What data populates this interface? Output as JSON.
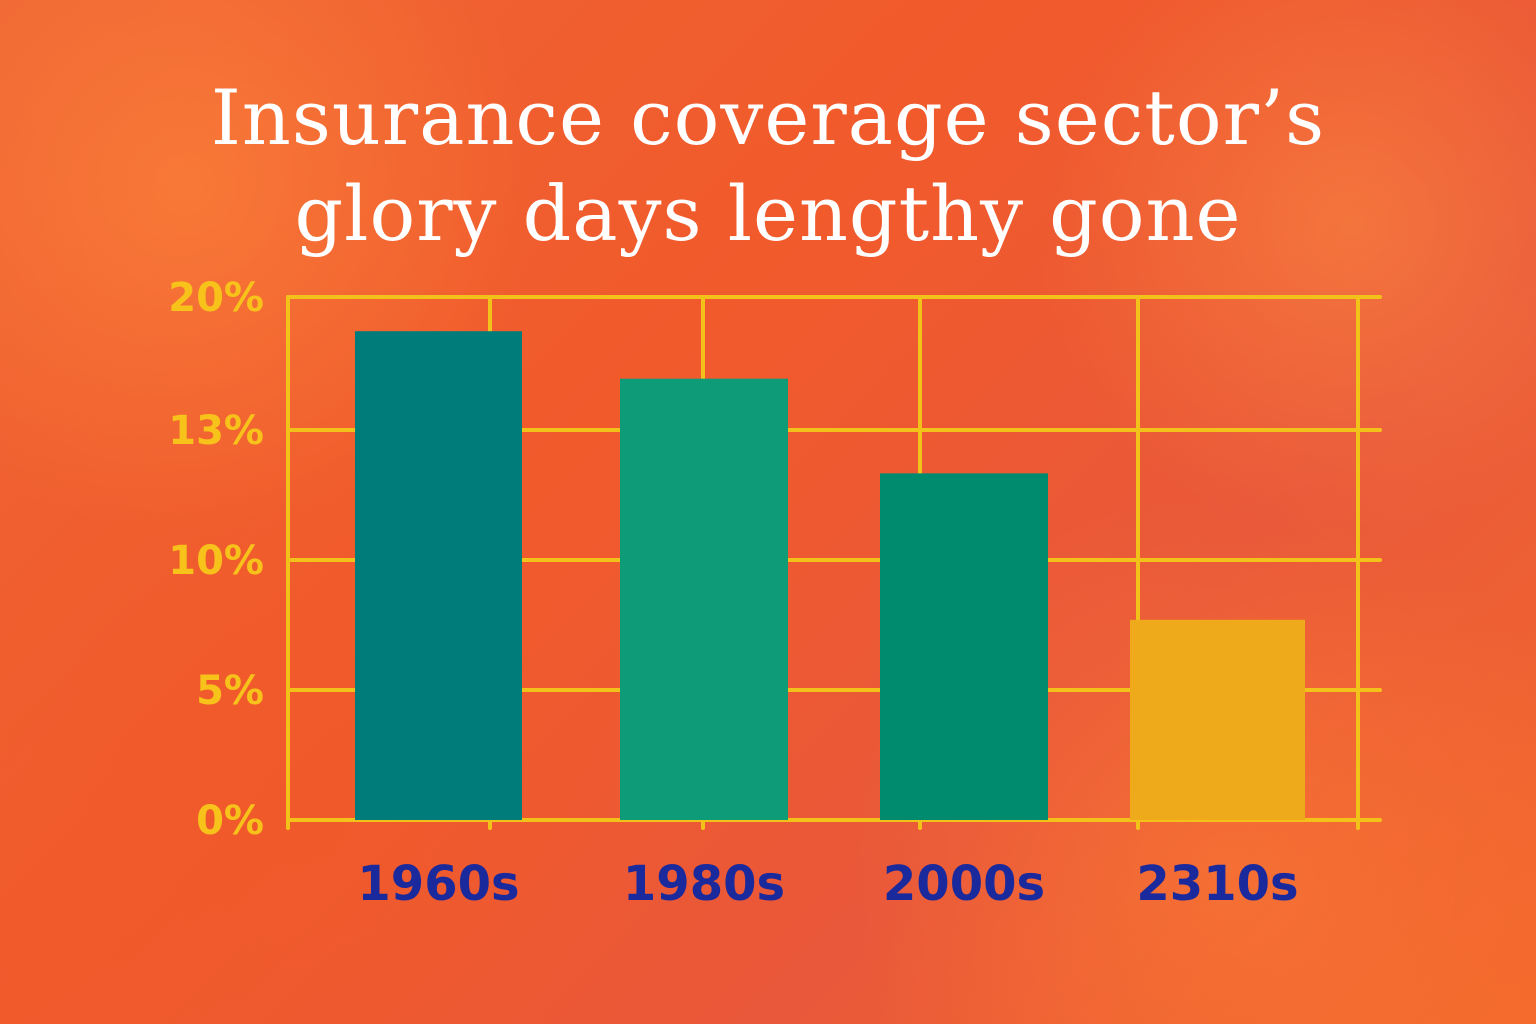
{
  "title_lines": [
    "Insurance coverage sector’s",
    "glory days lengthy gone"
  ],
  "colors": {
    "grid": "#f2c21a",
    "bars": [
      "#007d7a",
      "#0d9b78",
      "#008a6e",
      "#eeaa1a"
    ]
  },
  "chart_data": {
    "type": "bar",
    "title": "Insurance coverage sector’s glory days lengthy gone",
    "categories": [
      "1960s",
      "1980s",
      "2000s",
      "2310s"
    ],
    "values": [
      18.2,
      15.7,
      12.0,
      7.7
    ],
    "yticks": [
      {
        "value": 0,
        "label": "0%"
      },
      {
        "value": 5,
        "label": "5%"
      },
      {
        "value": 10,
        "label": "10%"
      },
      {
        "value": 13,
        "label": "13%"
      },
      {
        "value": 20,
        "label": "20%"
      }
    ],
    "ylim": [
      0,
      20
    ],
    "grid": true,
    "xlabel": "",
    "ylabel": ""
  }
}
